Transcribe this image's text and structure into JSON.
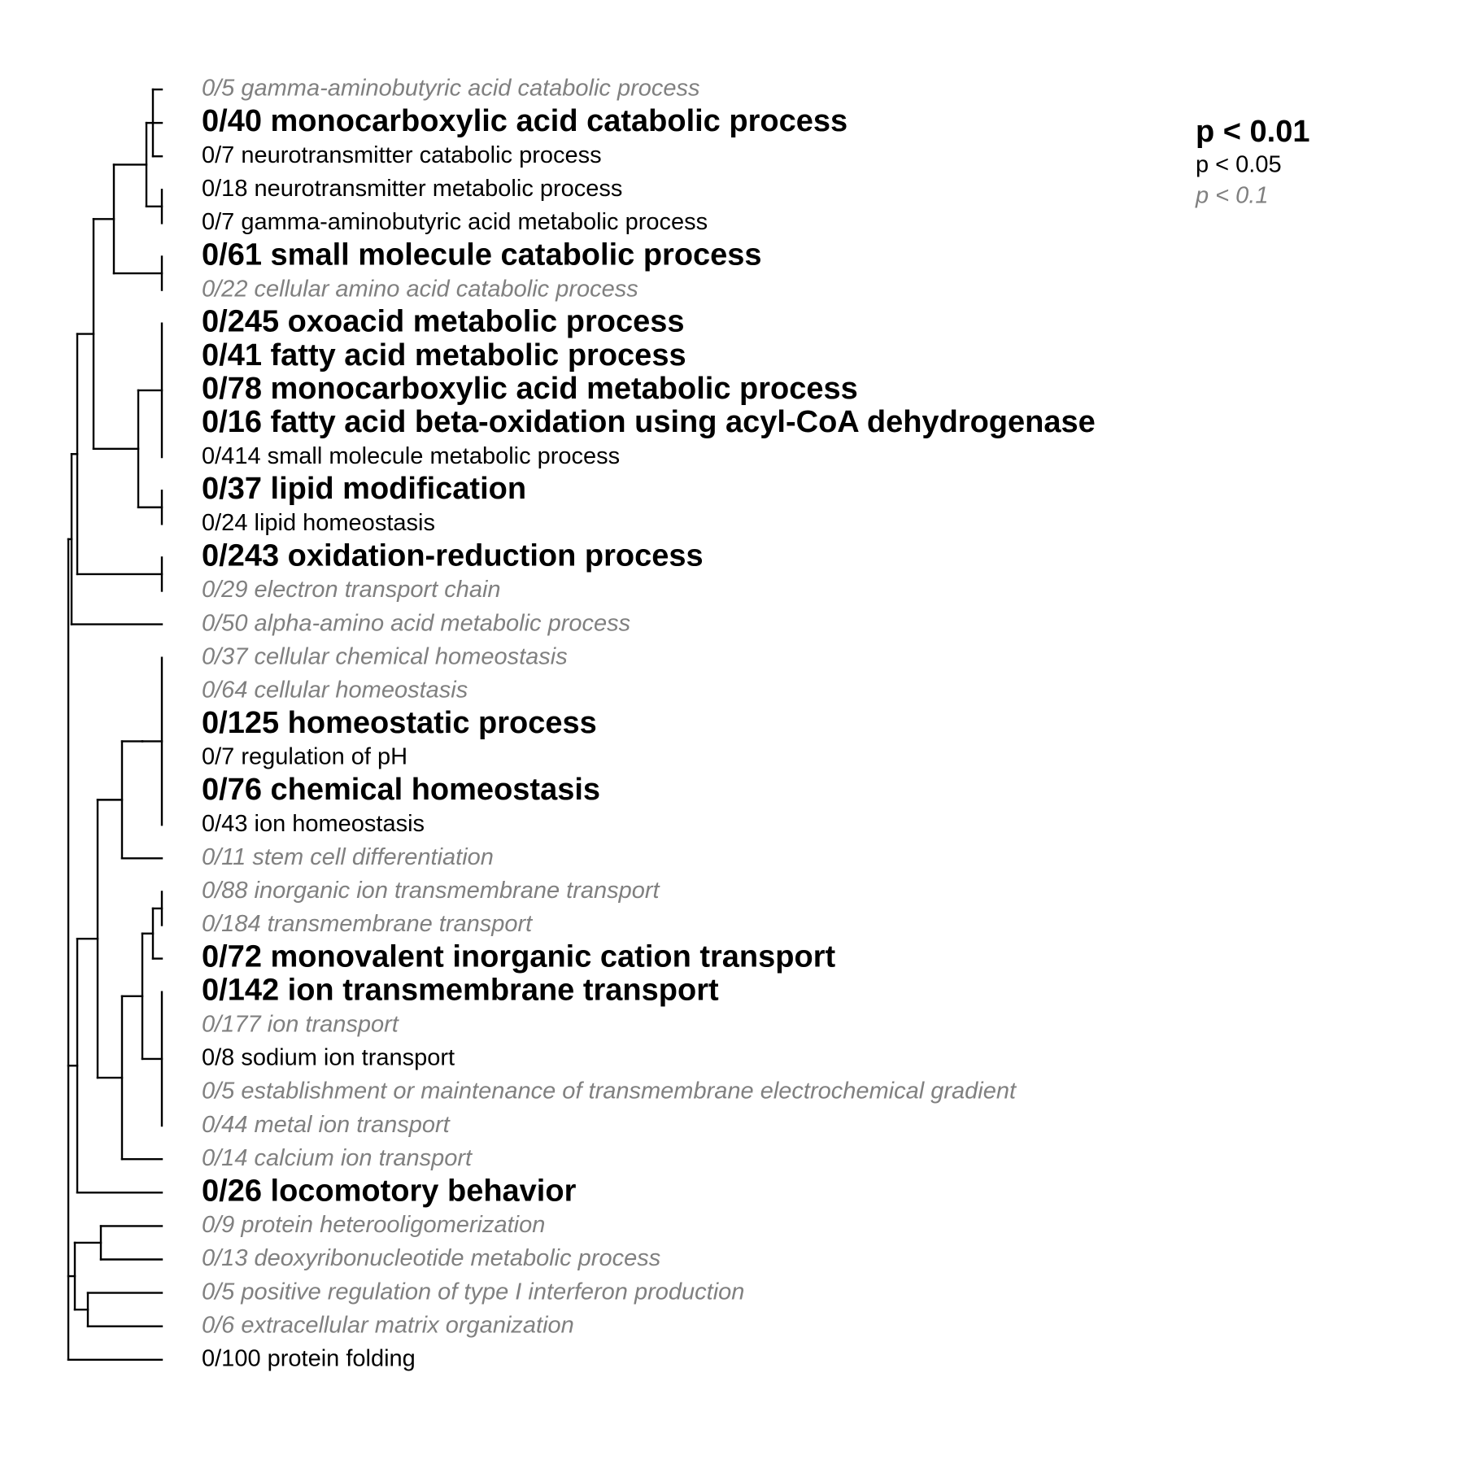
{
  "legend": {
    "p01": "p < 0.01",
    "p05": "p < 0.05",
    "p1": "p < 0.1"
  },
  "colors": {
    "significant": "#000000",
    "weak": "#808080"
  },
  "terms": [
    {
      "label": "0/5 gamma-aminobutyric acid catabolic process",
      "level": 3
    },
    {
      "label": "0/40 monocarboxylic acid catabolic process",
      "level": 1
    },
    {
      "label": "0/7 neurotransmitter catabolic process",
      "level": 2
    },
    {
      "label": "0/18 neurotransmitter metabolic process",
      "level": 2
    },
    {
      "label": "0/7 gamma-aminobutyric acid metabolic process",
      "level": 2
    },
    {
      "label": "0/61 small molecule catabolic process",
      "level": 1
    },
    {
      "label": "0/22 cellular amino acid catabolic process",
      "level": 3
    },
    {
      "label": "0/245 oxoacid metabolic process",
      "level": 1
    },
    {
      "label": "0/41 fatty acid metabolic process",
      "level": 1
    },
    {
      "label": "0/78 monocarboxylic acid metabolic process",
      "level": 1
    },
    {
      "label": "0/16 fatty acid beta-oxidation using acyl-CoA dehydrogenase",
      "level": 1
    },
    {
      "label": "0/414 small molecule metabolic process",
      "level": 2
    },
    {
      "label": "0/37 lipid modification",
      "level": 1
    },
    {
      "label": "0/24 lipid homeostasis",
      "level": 2
    },
    {
      "label": "0/243 oxidation-reduction process",
      "level": 1
    },
    {
      "label": "0/29 electron transport chain",
      "level": 3
    },
    {
      "label": "0/50 alpha-amino acid metabolic process",
      "level": 3
    },
    {
      "label": "0/37 cellular chemical homeostasis",
      "level": 3
    },
    {
      "label": "0/64 cellular homeostasis",
      "level": 3
    },
    {
      "label": "0/125 homeostatic process",
      "level": 1
    },
    {
      "label": "0/7 regulation of pH",
      "level": 2
    },
    {
      "label": "0/76 chemical homeostasis",
      "level": 1
    },
    {
      "label": "0/43 ion homeostasis",
      "level": 2
    },
    {
      "label": "0/11 stem cell differentiation",
      "level": 3
    },
    {
      "label": "0/88 inorganic ion transmembrane transport",
      "level": 3
    },
    {
      "label": "0/184 transmembrane transport",
      "level": 3
    },
    {
      "label": "0/72 monovalent inorganic cation transport",
      "level": 1
    },
    {
      "label": "0/142 ion transmembrane transport",
      "level": 1
    },
    {
      "label": "0/177 ion transport",
      "level": 3
    },
    {
      "label": "0/8 sodium ion transport",
      "level": 2
    },
    {
      "label": "0/5 establishment or maintenance of transmembrane electrochemical gradient",
      "level": 3
    },
    {
      "label": "0/44 metal ion transport",
      "level": 3
    },
    {
      "label": "0/14 calcium ion transport",
      "level": 3
    },
    {
      "label": "0/26 locomotory behavior",
      "level": 1
    },
    {
      "label": "0/9 protein heterooligomerization",
      "level": 3
    },
    {
      "label": "0/13 deoxyribonucleotide metabolic process",
      "level": 3
    },
    {
      "label": "0/5 positive regulation of type I interferon production",
      "level": 3
    },
    {
      "label": "0/6 extracellular matrix organization",
      "level": 3
    },
    {
      "label": "0/100 protein folding",
      "level": 2
    }
  ]
}
